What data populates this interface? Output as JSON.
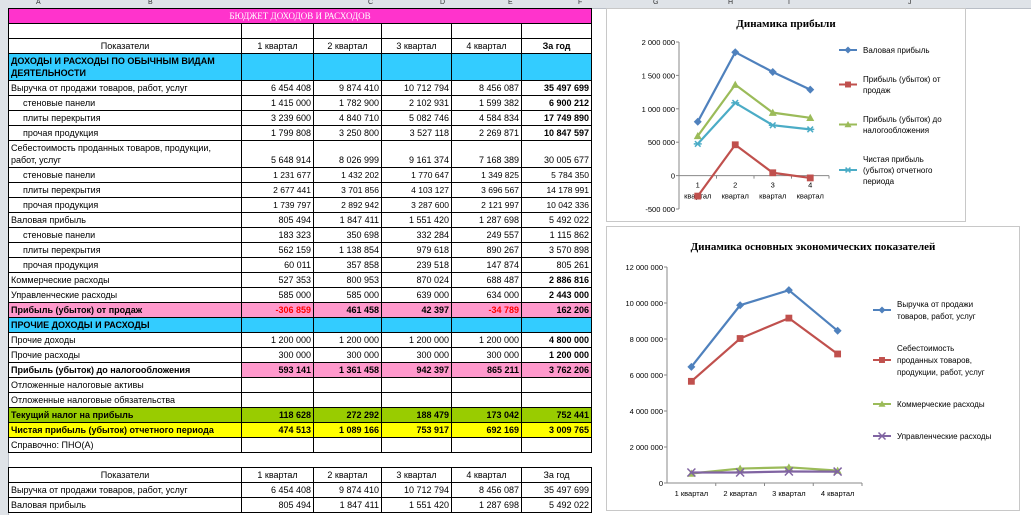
{
  "columns": [
    "A",
    "B",
    "C",
    "D",
    "E",
    "F",
    "G",
    "H",
    "I",
    "J"
  ],
  "row_numbers": [
    "",
    "3",
    "4",
    "5",
    "6",
    "7",
    "8",
    "",
    "9",
    "0",
    "1",
    "2",
    "3",
    "4",
    "5",
    "6",
    "7",
    "8",
    "9",
    "0",
    "1",
    "2",
    "3",
    "4",
    "5",
    "6",
    "7",
    "8",
    "",
    "0",
    "1",
    "2"
  ],
  "sheet": {
    "title": "БЮДЖЕТ ДОХОДОВ И РАСХОДОВ",
    "headers": [
      "Показатели",
      "1 квартал",
      "2 квартал",
      "3 квартал",
      "4 квартал",
      "За год"
    ],
    "section1": "ДОХОДЫ И РАСХОДЫ ПО ОБЫЧНЫМ ВИДАМ ДЕЯТЕЛЬНОСТИ",
    "rows": [
      {
        "label": "Выручка от продажи товаров, работ, услуг",
        "v": [
          "6 454 408",
          "9 874 410",
          "10 712 794",
          "8 456 087",
          "35 497 699"
        ]
      },
      {
        "label": "стеновые панели",
        "v": [
          "1 415 000",
          "1 782 900",
          "2 102 931",
          "1 599 382",
          "6 900 212"
        ]
      },
      {
        "label": "плиты перекрытия",
        "v": [
          "3 239 600",
          "4 840 710",
          "5 082 746",
          "4 584 834",
          "17 749 890"
        ]
      },
      {
        "label": "прочая продукция",
        "v": [
          "1 799 808",
          "3 250 800",
          "3 527 118",
          "2 269 871",
          "10 847 597"
        ]
      },
      {
        "label": "Себестоимость проданных товаров, продукции, работ, услуг",
        "v": [
          "5 648 914",
          "8 026 999",
          "9 161 374",
          "7 168 389",
          "30 005 677"
        ]
      },
      {
        "label": "стеновые панели",
        "v": [
          "1 231 677",
          "1 432 202",
          "1 770 647",
          "1 349 825",
          "5 784 350"
        ]
      },
      {
        "label": "плиты перекрытия",
        "v": [
          "2 677 441",
          "3 701 856",
          "4 103 127",
          "3 696 567",
          "14 178 991"
        ]
      },
      {
        "label": "прочая продукция",
        "v": [
          "1 739 797",
          "2 892 942",
          "3 287 600",
          "2 121 997",
          "10 042 336"
        ]
      },
      {
        "label": "Валовая прибыль",
        "v": [
          "805 494",
          "1 847 411",
          "1 551 420",
          "1 287 698",
          "5 492 022"
        ]
      },
      {
        "label": "стеновые панели",
        "v": [
          "183 323",
          "350 698",
          "332 284",
          "249 557",
          "1 115 862"
        ]
      },
      {
        "label": "плиты перекрытия",
        "v": [
          "562 159",
          "1 138 854",
          "979 618",
          "890 267",
          "3 570 898"
        ]
      },
      {
        "label": "прочая продукция",
        "v": [
          "60 011",
          "357 858",
          "239 518",
          "147 874",
          "805 261"
        ]
      },
      {
        "label": "Коммерческие расходы",
        "v": [
          "527 353",
          "800 953",
          "870 024",
          "688 487",
          "2 886 816"
        ]
      },
      {
        "label": "Управленческие расходы",
        "v": [
          "585 000",
          "585 000",
          "639 000",
          "634 000",
          "2 443 000"
        ]
      },
      {
        "label": "Прибыль (убыток) от продаж",
        "v": [
          "-306 859",
          "461 458",
          "42 397",
          "-34 789",
          "162 206"
        ]
      }
    ],
    "section2": "ПРОЧИЕ ДОХОДЫ И РАСХОДЫ",
    "rows2": [
      {
        "label": "Прочие доходы",
        "v": [
          "1 200 000",
          "1 200 000",
          "1 200 000",
          "1 200 000",
          "4 800 000"
        ]
      },
      {
        "label": "Прочие расходы",
        "v": [
          "300 000",
          "300 000",
          "300 000",
          "300 000",
          "1 200 000"
        ]
      },
      {
        "label": "Прибыль (убыток) до налогообложения",
        "v": [
          "593 141",
          "1 361 458",
          "942 397",
          "865 211",
          "3 762 206"
        ]
      },
      {
        "label": "Отложенные налоговые активы",
        "v": [
          "",
          "",
          "",
          "",
          ""
        ]
      },
      {
        "label": "Отложенные налоговые обязательства",
        "v": [
          "",
          "",
          "",
          "",
          ""
        ]
      },
      {
        "label": "Текущий налог на прибыль",
        "v": [
          "118 628",
          "272 292",
          "188 479",
          "173 042",
          "752 441"
        ]
      },
      {
        "label": "Чистая прибыль (убыток) отчетного периода",
        "v": [
          "474 513",
          "1 089 166",
          "753 917",
          "692 169",
          "3 009 765"
        ]
      }
    ],
    "note": "Справочно: ПНО(А)",
    "headers2": [
      "Показатели",
      "1 квартал",
      "2 квартал",
      "3 квартал",
      "4 квартал",
      "За год"
    ],
    "rows3": [
      {
        "label": "Выручка от продажи товаров, работ, услуг",
        "v": [
          "6 454 408",
          "9 874 410",
          "10 712 794",
          "8 456 087",
          "35 497 699"
        ]
      },
      {
        "label": "Валовая прибыль",
        "v": [
          "805 494",
          "1 847 411",
          "1 551 420",
          "1 287 698",
          "5 492 022"
        ]
      }
    ]
  },
  "chart_data": [
    {
      "type": "line",
      "title": "Динамика прибыли",
      "categories": [
        "1 квартал",
        "2 квартал",
        "3 квартал",
        "4 квартал"
      ],
      "ylim": [
        -500000,
        2000000
      ],
      "yticks": [
        "2 000 000",
        "1 500 000",
        "1 000 000",
        "500 000",
        "0",
        "-500 000"
      ],
      "ytick_values": [
        2000000,
        1500000,
        1000000,
        500000,
        0,
        -500000
      ],
      "series": [
        {
          "name": "Валовая прибыль",
          "color": "#4f81bd",
          "marker": "diamond",
          "values": [
            805494,
            1847411,
            1551420,
            1287698
          ]
        },
        {
          "name": "Прибыль (убыток) от продаж",
          "color": "#c0504d",
          "marker": "square",
          "values": [
            -306859,
            461458,
            42397,
            -34789
          ]
        },
        {
          "name": "Прибыль (убыток) до налогообложения",
          "color": "#9bbb59",
          "marker": "triangle",
          "values": [
            593141,
            1361458,
            942397,
            865211
          ]
        },
        {
          "name": "Чистая прибыль (убыток) отчетного периода",
          "color": "#4bacc6",
          "marker": "star",
          "values": [
            474513,
            1089166,
            753917,
            692169
          ]
        }
      ],
      "legend_lines": [
        [
          "Валовая прибыль"
        ],
        [
          "Прибыль (убыток) от",
          "продаж"
        ],
        [
          "Прибыль (убыток) до",
          "налогообложения"
        ],
        [
          "Чистая прибыль",
          "(убыток) отчетного",
          "периода"
        ]
      ]
    },
    {
      "type": "line",
      "title": "Динамика основных экономических показателей",
      "categories": [
        "1 квартал",
        "2 квартал",
        "3 квартал",
        "4 квартал"
      ],
      "ylim": [
        0,
        12000000
      ],
      "yticks": [
        "12 000 000",
        "10 000 000",
        "8 000 000",
        "6 000 000",
        "4 000 000",
        "2 000 000",
        "0"
      ],
      "ytick_values": [
        12000000,
        10000000,
        8000000,
        6000000,
        4000000,
        2000000,
        0
      ],
      "series": [
        {
          "name": "Выручка от продажи товаров, работ, услуг",
          "color": "#4f81bd",
          "marker": "diamond",
          "values": [
            6454408,
            9874410,
            10712794,
            8456087
          ]
        },
        {
          "name": "Себестоимость проданных товаров, продукции, работ, услуг",
          "color": "#c0504d",
          "marker": "square",
          "values": [
            5648914,
            8026999,
            9161374,
            7168389
          ]
        },
        {
          "name": "Коммерческие расходы",
          "color": "#9bbb59",
          "marker": "triangle",
          "values": [
            527353,
            800953,
            870024,
            688487
          ]
        },
        {
          "name": "Управленческие расходы",
          "color": "#8064a2",
          "marker": "x",
          "values": [
            585000,
            585000,
            639000,
            634000
          ]
        }
      ],
      "legend_lines": [
        [
          "Выручка от продажи",
          "товаров, работ, услуг"
        ],
        [
          "Себестоимость",
          "проданных товаров,",
          "продукции, работ, услуг"
        ],
        [
          "Коммерческие расходы"
        ],
        [
          "Управленческие расходы"
        ]
      ]
    }
  ]
}
